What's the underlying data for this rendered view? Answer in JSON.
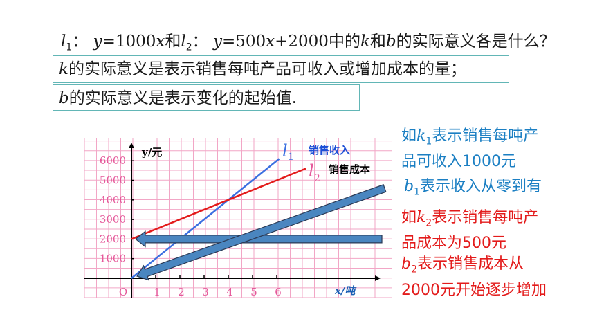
{
  "question": {
    "l1_name": "l",
    "l1_sub": "1",
    "colon1": "：",
    "eq1_y": "y",
    "eq1_rhs": "=1000",
    "eq1_x": "x",
    "and1": "和",
    "l2_name": "l",
    "l2_sub": "2",
    "colon2": "：",
    "eq2_y": "y",
    "eq2_rhs": "=500",
    "eq2_x": "x",
    "eq2_tail": "+2000",
    "mid": "中的",
    "k": "k",
    "and2": "和",
    "b": "b",
    "end": "的实际意义各是什么？"
  },
  "box1": {
    "var": "k",
    "text": "的实际意义是表示销售每吨产品可收入或增加成本的量；"
  },
  "box2": {
    "var": "b",
    "text": "的实际意义是表示变化的起始值."
  },
  "note_blue": {
    "line1_pre": "如",
    "k": "k",
    "k_sub": "1",
    "line1_post": "表示销售每吨产",
    "line2": "品可收入1000元",
    "b": "b",
    "b_sub": "1",
    "line3_post": "表示收入从零到有"
  },
  "note_red": {
    "line1_pre": "如",
    "k": "k",
    "k_sub": "2",
    "line1_post": "表示销售每吨产",
    "line2": "品成本为500元",
    "b": "b",
    "b_sub": "2",
    "line3_post": "表示销售成本从",
    "line4": "2000元开始逐步增加"
  },
  "chart_data": {
    "type": "line",
    "xlabel": "x/吨",
    "ylabel": "y/元",
    "xlim": [
      0,
      6.7
    ],
    "ylim": [
      0,
      6000
    ],
    "origin_label": "O",
    "x_ticks": [
      1,
      2,
      3,
      4,
      5,
      6
    ],
    "y_ticks": [
      1000,
      2000,
      3000,
      4000,
      5000,
      6000
    ],
    "grid": true,
    "series": [
      {
        "name": "l1",
        "label": "l",
        "label_sub": "1",
        "tag": "销售收入",
        "color": "#3b6fe0",
        "x": [
          0,
          6.1
        ],
        "y": [
          0,
          6100
        ]
      },
      {
        "name": "l2",
        "label": "l",
        "label_sub": "2",
        "tag": "销售成本",
        "color": "#e31b1b",
        "x": [
          0,
          7.2
        ],
        "y": [
          2000,
          5600
        ]
      }
    ],
    "colors": {
      "axis": "#000000",
      "grid": "#f2a6c6",
      "tick_label": "#e5589a",
      "arrow_fill": "#4a86c0",
      "arrow_stroke": "#2b3a55"
    }
  }
}
